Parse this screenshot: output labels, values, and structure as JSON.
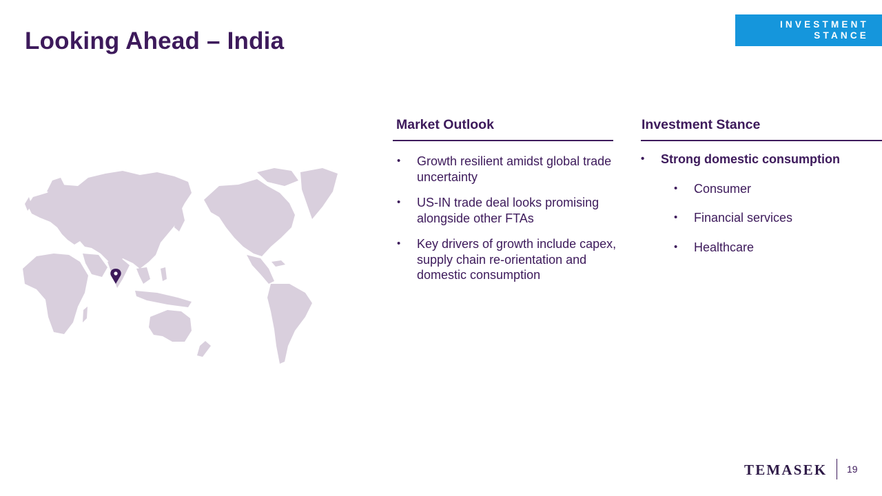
{
  "slide": {
    "title": "Looking Ahead – India",
    "badge": {
      "line1": "INVESTMENT",
      "line2": "STANCE"
    },
    "map": {
      "marker": "location-pin-icon",
      "land_color": "#d9cfdd",
      "pin_color": "#3d1a5b"
    },
    "market_outlook": {
      "heading": "Market Outlook",
      "items": [
        "Growth resilient amidst global trade uncertainty",
        "US-IN trade deal looks promising alongside other FTAs",
        "Key drivers of growth include capex, supply chain re-orientation and domestic consumption"
      ]
    },
    "investment_stance": {
      "heading": "Investment Stance",
      "main": "Strong domestic consumption",
      "sub_items": [
        "Consumer",
        "Financial services",
        "Healthcare"
      ]
    },
    "footer": {
      "logo": "TEMASEK",
      "page": "19"
    },
    "colors": {
      "primary": "#3d1a5b",
      "accent": "#1596dc"
    }
  }
}
